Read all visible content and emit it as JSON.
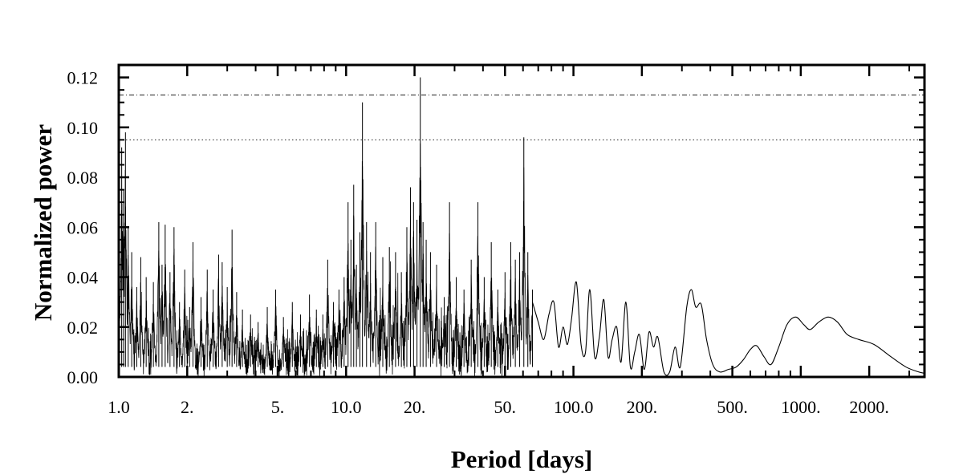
{
  "chart_data": {
    "type": "line",
    "title": "",
    "xlabel": "Period [days]",
    "ylabel": "Normalized power",
    "x_scale": "log",
    "xlim": [
      1.0,
      3500
    ],
    "ylim": [
      0.0,
      0.125
    ],
    "grid": false,
    "legend": "none",
    "x_ticks": [
      {
        "value": 1,
        "label": "1.0"
      },
      {
        "value": 2,
        "label": "2."
      },
      {
        "value": 5,
        "label": "5."
      },
      {
        "value": 10,
        "label": "10.0"
      },
      {
        "value": 20,
        "label": "20."
      },
      {
        "value": 50,
        "label": "50."
      },
      {
        "value": 100,
        "label": "100.0"
      },
      {
        "value": 200,
        "label": "200."
      },
      {
        "value": 500,
        "label": "500."
      },
      {
        "value": 1000,
        "label": "1000."
      },
      {
        "value": 2000,
        "label": "2000."
      }
    ],
    "y_ticks": [
      {
        "value": 0.0,
        "label": "0.00"
      },
      {
        "value": 0.02,
        "label": "0.02"
      },
      {
        "value": 0.04,
        "label": "0.04"
      },
      {
        "value": 0.06,
        "label": "0.06"
      },
      {
        "value": 0.08,
        "label": "0.08"
      },
      {
        "value": 0.1,
        "label": "0.10"
      },
      {
        "value": 0.12,
        "label": "0.12"
      }
    ],
    "threshold_lines": [
      {
        "y": 0.113,
        "style": "dash-dot"
      },
      {
        "y": 0.095,
        "style": "dotted"
      }
    ],
    "series": [
      {
        "color": "#000000",
        "peaks": [
          {
            "x": 1.0,
            "y": 0.035
          },
          {
            "x": 1.03,
            "y": 0.092
          },
          {
            "x": 1.05,
            "y": 0.075
          },
          {
            "x": 1.07,
            "y": 0.098
          },
          {
            "x": 1.1,
            "y": 0.06
          },
          {
            "x": 1.14,
            "y": 0.05
          },
          {
            "x": 1.2,
            "y": 0.036
          },
          {
            "x": 1.25,
            "y": 0.048
          },
          {
            "x": 1.32,
            "y": 0.04
          },
          {
            "x": 1.42,
            "y": 0.038
          },
          {
            "x": 1.5,
            "y": 0.062
          },
          {
            "x": 1.55,
            "y": 0.045
          },
          {
            "x": 1.6,
            "y": 0.061
          },
          {
            "x": 1.68,
            "y": 0.042
          },
          {
            "x": 1.75,
            "y": 0.06
          },
          {
            "x": 1.85,
            "y": 0.03
          },
          {
            "x": 1.95,
            "y": 0.043
          },
          {
            "x": 2.05,
            "y": 0.028
          },
          {
            "x": 2.12,
            "y": 0.054
          },
          {
            "x": 2.3,
            "y": 0.032
          },
          {
            "x": 2.45,
            "y": 0.043
          },
          {
            "x": 2.6,
            "y": 0.035
          },
          {
            "x": 2.75,
            "y": 0.049
          },
          {
            "x": 2.85,
            "y": 0.046
          },
          {
            "x": 3.0,
            "y": 0.036
          },
          {
            "x": 3.15,
            "y": 0.059
          },
          {
            "x": 3.3,
            "y": 0.034
          },
          {
            "x": 3.5,
            "y": 0.027
          },
          {
            "x": 3.8,
            "y": 0.025
          },
          {
            "x": 4.1,
            "y": 0.022
          },
          {
            "x": 4.5,
            "y": 0.028
          },
          {
            "x": 4.9,
            "y": 0.035
          },
          {
            "x": 5.3,
            "y": 0.024
          },
          {
            "x": 5.8,
            "y": 0.03
          },
          {
            "x": 6.3,
            "y": 0.025
          },
          {
            "x": 6.9,
            "y": 0.033
          },
          {
            "x": 7.4,
            "y": 0.027
          },
          {
            "x": 7.9,
            "y": 0.025
          },
          {
            "x": 8.3,
            "y": 0.047
          },
          {
            "x": 8.8,
            "y": 0.03
          },
          {
            "x": 9.3,
            "y": 0.035
          },
          {
            "x": 9.8,
            "y": 0.04
          },
          {
            "x": 10.2,
            "y": 0.07
          },
          {
            "x": 10.5,
            "y": 0.055
          },
          {
            "x": 10.8,
            "y": 0.077
          },
          {
            "x": 11.1,
            "y": 0.045
          },
          {
            "x": 11.5,
            "y": 0.058
          },
          {
            "x": 11.8,
            "y": 0.11
          },
          {
            "x": 12.3,
            "y": 0.062
          },
          {
            "x": 12.8,
            "y": 0.05
          },
          {
            "x": 13.5,
            "y": 0.062
          },
          {
            "x": 14.5,
            "y": 0.048
          },
          {
            "x": 15.5,
            "y": 0.052
          },
          {
            "x": 16.5,
            "y": 0.05
          },
          {
            "x": 17.5,
            "y": 0.042
          },
          {
            "x": 18.5,
            "y": 0.06
          },
          {
            "x": 19.2,
            "y": 0.076
          },
          {
            "x": 19.8,
            "y": 0.07
          },
          {
            "x": 20.5,
            "y": 0.063
          },
          {
            "x": 21.2,
            "y": 0.12
          },
          {
            "x": 21.8,
            "y": 0.062
          },
          {
            "x": 22.5,
            "y": 0.055
          },
          {
            "x": 23.5,
            "y": 0.05
          },
          {
            "x": 25.0,
            "y": 0.045
          },
          {
            "x": 27.0,
            "y": 0.032
          },
          {
            "x": 28.5,
            "y": 0.07
          },
          {
            "x": 30.5,
            "y": 0.04
          },
          {
            "x": 33.0,
            "y": 0.035
          },
          {
            "x": 35.5,
            "y": 0.047
          },
          {
            "x": 38.0,
            "y": 0.07
          },
          {
            "x": 40.5,
            "y": 0.04
          },
          {
            "x": 43.5,
            "y": 0.054
          },
          {
            "x": 46.5,
            "y": 0.035
          },
          {
            "x": 50.0,
            "y": 0.042
          },
          {
            "x": 53.0,
            "y": 0.054
          },
          {
            "x": 55.5,
            "y": 0.047
          },
          {
            "x": 58.0,
            "y": 0.05
          },
          {
            "x": 60.5,
            "y": 0.096
          },
          {
            "x": 63.0,
            "y": 0.05
          },
          {
            "x": 66.0,
            "y": 0.035
          }
        ],
        "smooth": [
          {
            "x": 70,
            "y": 0.022
          },
          {
            "x": 74,
            "y": 0.015
          },
          {
            "x": 78,
            "y": 0.025
          },
          {
            "x": 82,
            "y": 0.03
          },
          {
            "x": 86,
            "y": 0.012
          },
          {
            "x": 90,
            "y": 0.02
          },
          {
            "x": 94,
            "y": 0.013
          },
          {
            "x": 98,
            "y": 0.023
          },
          {
            "x": 103,
            "y": 0.038
          },
          {
            "x": 108,
            "y": 0.013
          },
          {
            "x": 113,
            "y": 0.01
          },
          {
            "x": 118,
            "y": 0.035
          },
          {
            "x": 124,
            "y": 0.008
          },
          {
            "x": 130,
            "y": 0.016
          },
          {
            "x": 136,
            "y": 0.031
          },
          {
            "x": 142,
            "y": 0.008
          },
          {
            "x": 148,
            "y": 0.015
          },
          {
            "x": 155,
            "y": 0.02
          },
          {
            "x": 162,
            "y": 0.006
          },
          {
            "x": 170,
            "y": 0.03
          },
          {
            "x": 178,
            "y": 0.004
          },
          {
            "x": 186,
            "y": 0.01
          },
          {
            "x": 195,
            "y": 0.017
          },
          {
            "x": 205,
            "y": 0.003
          },
          {
            "x": 215,
            "y": 0.018
          },
          {
            "x": 225,
            "y": 0.012
          },
          {
            "x": 235,
            "y": 0.016
          },
          {
            "x": 250,
            "y": 0.002
          },
          {
            "x": 265,
            "y": 0.002
          },
          {
            "x": 280,
            "y": 0.012
          },
          {
            "x": 295,
            "y": 0.004
          },
          {
            "x": 315,
            "y": 0.028
          },
          {
            "x": 330,
            "y": 0.035
          },
          {
            "x": 345,
            "y": 0.028
          },
          {
            "x": 365,
            "y": 0.029
          },
          {
            "x": 385,
            "y": 0.015
          },
          {
            "x": 410,
            "y": 0.005
          },
          {
            "x": 440,
            "y": 0.002
          },
          {
            "x": 480,
            "y": 0.003
          },
          {
            "x": 520,
            "y": 0.004
          },
          {
            "x": 560,
            "y": 0.007
          },
          {
            "x": 600,
            "y": 0.011
          },
          {
            "x": 640,
            "y": 0.0125
          },
          {
            "x": 690,
            "y": 0.008
          },
          {
            "x": 740,
            "y": 0.005
          },
          {
            "x": 800,
            "y": 0.012
          },
          {
            "x": 870,
            "y": 0.021
          },
          {
            "x": 950,
            "y": 0.024
          },
          {
            "x": 1030,
            "y": 0.021
          },
          {
            "x": 1100,
            "y": 0.019
          },
          {
            "x": 1200,
            "y": 0.022
          },
          {
            "x": 1320,
            "y": 0.024
          },
          {
            "x": 1450,
            "y": 0.022
          },
          {
            "x": 1600,
            "y": 0.017
          },
          {
            "x": 1800,
            "y": 0.015
          },
          {
            "x": 2100,
            "y": 0.013
          },
          {
            "x": 2500,
            "y": 0.008
          },
          {
            "x": 2900,
            "y": 0.004
          },
          {
            "x": 3300,
            "y": 0.002
          },
          {
            "x": 3500,
            "y": 0.0015
          }
        ]
      }
    ]
  }
}
